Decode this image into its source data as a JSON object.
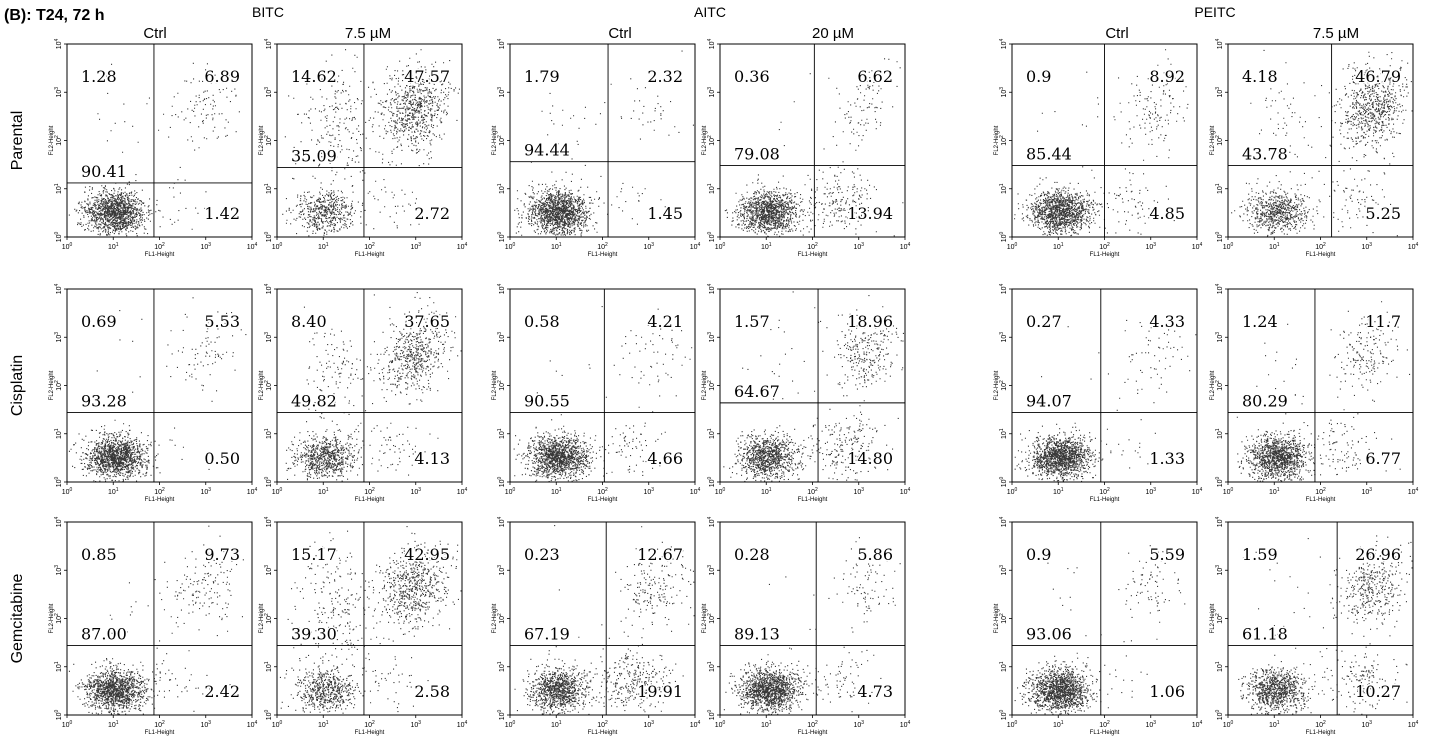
{
  "figure": {
    "panel_title": "(B): T24, 72 h",
    "drugs": [
      "BITC",
      "AITC",
      "PEITC"
    ],
    "conditions": [
      [
        "Ctrl",
        "7.5 µM"
      ],
      [
        "Ctrl",
        "20 µM"
      ],
      [
        "Ctrl",
        "7.5 µM"
      ]
    ],
    "rows": [
      "Parental",
      "Cisplatin",
      "Gemcitabine"
    ],
    "x_axis_label": "FL1-Height",
    "y_axis_label": "FL2-Height",
    "tick_labels": [
      "0",
      "1",
      "2",
      "3",
      "4"
    ]
  },
  "chart_data": {
    "type": "scatter",
    "x_scale": "log",
    "y_scale": "log",
    "xlim": [
      1,
      10000
    ],
    "ylim": [
      1,
      10000
    ],
    "quadrant_legend": [
      "upper-left",
      "upper-right",
      "lower-left",
      "lower-right"
    ],
    "plots": [
      {
        "row": "Parental",
        "drug": "BITC",
        "condition": "Ctrl",
        "quadrants": [
          "1.28",
          "6.89",
          "90.41",
          "1.42"
        ]
      },
      {
        "row": "Parental",
        "drug": "BITC",
        "condition": "7.5 µM",
        "quadrants": [
          "14.62",
          "47.57",
          "35.09",
          "2.72"
        ]
      },
      {
        "row": "Parental",
        "drug": "AITC",
        "condition": "Ctrl",
        "quadrants": [
          "1.79",
          "2.32",
          "94.44",
          "1.45"
        ]
      },
      {
        "row": "Parental",
        "drug": "AITC",
        "condition": "20 µM",
        "quadrants": [
          "0.36",
          "6.62",
          "79.08",
          "13.94"
        ]
      },
      {
        "row": "Parental",
        "drug": "PEITC",
        "condition": "Ctrl",
        "quadrants": [
          "0.9",
          "8.92",
          "85.44",
          "4.85"
        ]
      },
      {
        "row": "Parental",
        "drug": "PEITC",
        "condition": "7.5 µM",
        "quadrants": [
          "4.18",
          "46.79",
          "43.78",
          "5.25"
        ]
      },
      {
        "row": "Cisplatin",
        "drug": "BITC",
        "condition": "Ctrl",
        "quadrants": [
          "0.69",
          "5.53",
          "93.28",
          "0.50"
        ]
      },
      {
        "row": "Cisplatin",
        "drug": "BITC",
        "condition": "7.5 µM",
        "quadrants": [
          "8.40",
          "37.65",
          "49.82",
          "4.13"
        ]
      },
      {
        "row": "Cisplatin",
        "drug": "AITC",
        "condition": "Ctrl",
        "quadrants": [
          "0.58",
          "4.21",
          "90.55",
          "4.66"
        ]
      },
      {
        "row": "Cisplatin",
        "drug": "AITC",
        "condition": "20 µM",
        "quadrants": [
          "1.57",
          "18.96",
          "64.67",
          "14.80"
        ]
      },
      {
        "row": "Cisplatin",
        "drug": "PEITC",
        "condition": "Ctrl",
        "quadrants": [
          "0.27",
          "4.33",
          "94.07",
          "1.33"
        ]
      },
      {
        "row": "Cisplatin",
        "drug": "PEITC",
        "condition": "7.5 µM",
        "quadrants": [
          "1.24",
          "11.7",
          "80.29",
          "6.77"
        ]
      },
      {
        "row": "Gemcitabine",
        "drug": "BITC",
        "condition": "Ctrl",
        "quadrants": [
          "0.85",
          "9.73",
          "87.00",
          "2.42"
        ]
      },
      {
        "row": "Gemcitabine",
        "drug": "BITC",
        "condition": "7.5 µM",
        "quadrants": [
          "15.17",
          "42.95",
          "39.30",
          "2.58"
        ]
      },
      {
        "row": "Gemcitabine",
        "drug": "AITC",
        "condition": "Ctrl",
        "quadrants": [
          "0.23",
          "12.67",
          "67.19",
          "19.91"
        ]
      },
      {
        "row": "Gemcitabine",
        "drug": "AITC",
        "condition": "20 µM",
        "quadrants": [
          "0.28",
          "5.86",
          "89.13",
          "4.73"
        ]
      },
      {
        "row": "Gemcitabine",
        "drug": "PEITC",
        "condition": "Ctrl",
        "quadrants": [
          "0.9",
          "5.59",
          "93.06",
          "1.06"
        ]
      },
      {
        "row": "Gemcitabine",
        "drug": "PEITC",
        "condition": "7.5 µM",
        "quadrants": [
          "1.59",
          "26.96",
          "61.18",
          "10.27"
        ]
      }
    ]
  }
}
